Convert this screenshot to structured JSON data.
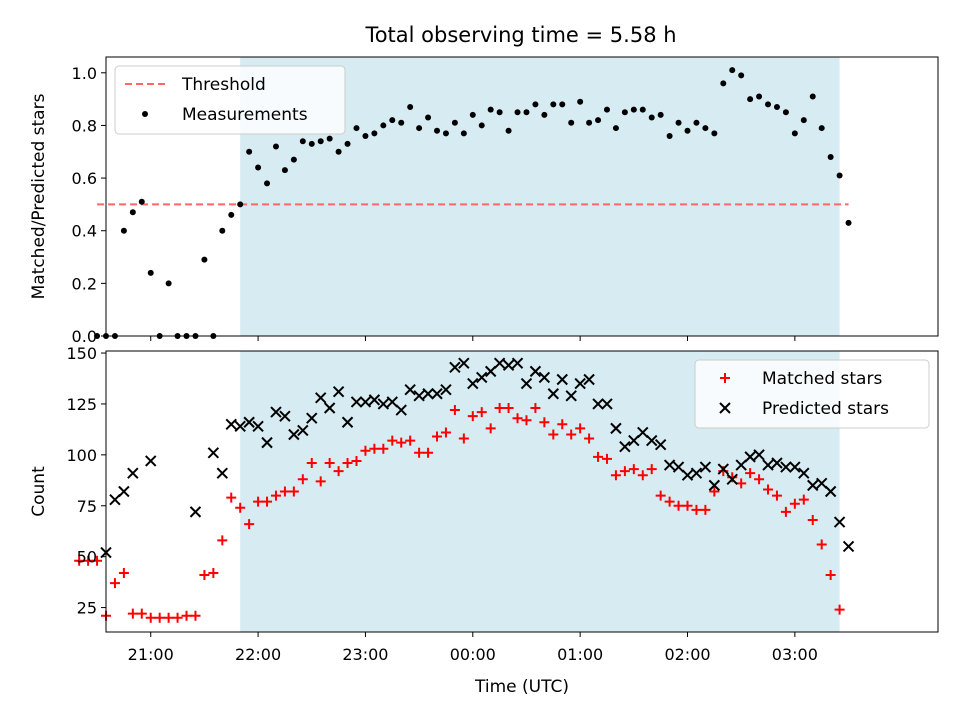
{
  "title": "Total observing time = 5.58 h",
  "colors": {
    "threshold": "#ff6666",
    "measurements": "#000000",
    "matched": "#ff0000",
    "predicted": "#000000",
    "span": "#add8e6"
  },
  "chart_data": [
    {
      "type": "scatter",
      "name": "top",
      "ylabel": "Matched/Predicted stars",
      "xlabel": "",
      "xlim": [
        "20:35",
        "04:20"
      ],
      "ylim": [
        0,
        1.06
      ],
      "yticks": [
        0.0,
        0.2,
        0.4,
        0.6,
        0.8,
        1.0
      ],
      "ytick_labels": [
        "0.0",
        "0.2",
        "0.4",
        "0.6",
        "0.8",
        "1.0"
      ],
      "observing_span": [
        "21:50",
        "03:25"
      ],
      "threshold": {
        "y": 0.5,
        "x_range": [
          "20:30",
          "03:30"
        ]
      },
      "legend": {
        "position": "top-left",
        "entries": [
          "Threshold",
          "Measurements"
        ]
      },
      "series": [
        {
          "name": "Measurements",
          "marker": "dot",
          "points": [
            [
              "20:30",
              0.0
            ],
            [
              "20:35",
              0.0
            ],
            [
              "20:40",
              0.0
            ],
            [
              "20:45",
              0.4
            ],
            [
              "20:50",
              0.47
            ],
            [
              "20:55",
              0.51
            ],
            [
              "21:00",
              0.24
            ],
            [
              "21:05",
              0.0
            ],
            [
              "21:10",
              0.2
            ],
            [
              "21:15",
              0.0
            ],
            [
              "21:20",
              0.0
            ],
            [
              "21:25",
              0.0
            ],
            [
              "21:30",
              0.29
            ],
            [
              "21:35",
              0.0
            ],
            [
              "21:40",
              0.4
            ],
            [
              "21:45",
              0.46
            ],
            [
              "21:50",
              0.5
            ],
            [
              "21:55",
              0.7
            ],
            [
              "22:00",
              0.64
            ],
            [
              "22:05",
              0.58
            ],
            [
              "22:10",
              0.72
            ],
            [
              "22:15",
              0.63
            ],
            [
              "22:20",
              0.67
            ],
            [
              "22:25",
              0.74
            ],
            [
              "22:30",
              0.73
            ],
            [
              "22:35",
              0.74
            ],
            [
              "22:40",
              0.75
            ],
            [
              "22:45",
              0.7
            ],
            [
              "22:50",
              0.73
            ],
            [
              "22:55",
              0.79
            ],
            [
              "23:00",
              0.76
            ],
            [
              "23:05",
              0.77
            ],
            [
              "23:10",
              0.8
            ],
            [
              "23:15",
              0.82
            ],
            [
              "23:20",
              0.81
            ],
            [
              "23:25",
              0.87
            ],
            [
              "23:30",
              0.79
            ],
            [
              "23:35",
              0.83
            ],
            [
              "23:40",
              0.78
            ],
            [
              "23:45",
              0.77
            ],
            [
              "23:50",
              0.81
            ],
            [
              "23:55",
              0.77
            ],
            [
              "00:00",
              0.84
            ],
            [
              "00:05",
              0.8
            ],
            [
              "00:10",
              0.86
            ],
            [
              "00:15",
              0.85
            ],
            [
              "00:20",
              0.78
            ],
            [
              "00:25",
              0.85
            ],
            [
              "00:30",
              0.85
            ],
            [
              "00:35",
              0.88
            ],
            [
              "00:40",
              0.84
            ],
            [
              "00:45",
              0.88
            ],
            [
              "00:50",
              0.88
            ],
            [
              "00:55",
              0.81
            ],
            [
              "01:00",
              0.89
            ],
            [
              "01:05",
              0.81
            ],
            [
              "01:10",
              0.82
            ],
            [
              "01:15",
              0.86
            ],
            [
              "01:20",
              0.79
            ],
            [
              "01:25",
              0.85
            ],
            [
              "01:30",
              0.86
            ],
            [
              "01:35",
              0.86
            ],
            [
              "01:40",
              0.83
            ],
            [
              "01:45",
              0.84
            ],
            [
              "01:50",
              0.76
            ],
            [
              "01:55",
              0.81
            ],
            [
              "02:00",
              0.78
            ],
            [
              "02:05",
              0.81
            ],
            [
              "02:10",
              0.79
            ],
            [
              "02:15",
              0.77
            ],
            [
              "02:20",
              0.96
            ],
            [
              "02:25",
              1.01
            ],
            [
              "02:30",
              0.99
            ],
            [
              "02:35",
              0.9
            ],
            [
              "02:40",
              0.91
            ],
            [
              "02:45",
              0.88
            ],
            [
              "02:50",
              0.87
            ],
            [
              "02:55",
              0.85
            ],
            [
              "03:00",
              0.77
            ],
            [
              "03:05",
              0.82
            ],
            [
              "03:10",
              0.91
            ],
            [
              "03:15",
              0.79
            ],
            [
              "03:20",
              0.68
            ],
            [
              "03:25",
              0.61
            ],
            [
              "03:30",
              0.43
            ]
          ]
        }
      ]
    },
    {
      "type": "scatter",
      "name": "bottom",
      "ylabel": "Count",
      "xlabel": "Time (UTC)",
      "xlim": [
        "20:35",
        "04:20"
      ],
      "ylim": [
        13,
        151
      ],
      "yticks": [
        25,
        50,
        75,
        100,
        125,
        150
      ],
      "ytick_labels": [
        "25",
        "50",
        "75",
        "100",
        "125",
        "150"
      ],
      "xticks": [
        "21:00",
        "22:00",
        "23:00",
        "00:00",
        "01:00",
        "02:00",
        "03:00"
      ],
      "observing_span": [
        "21:50",
        "03:25"
      ],
      "legend": {
        "position": "top-right",
        "entries": [
          "Matched stars",
          "Predicted stars"
        ]
      },
      "series": [
        {
          "name": "Matched stars",
          "marker": "plus",
          "points": [
            [
              "20:20",
              48
            ],
            [
              "20:25",
              48
            ],
            [
              "20:30",
              48
            ],
            [
              "20:35",
              21
            ],
            [
              "20:40",
              37
            ],
            [
              "20:45",
              42
            ],
            [
              "20:50",
              22
            ],
            [
              "20:55",
              22
            ],
            [
              "21:00",
              20
            ],
            [
              "21:05",
              20
            ],
            [
              "21:10",
              20
            ],
            [
              "21:15",
              20
            ],
            [
              "21:20",
              21
            ],
            [
              "21:25",
              21
            ],
            [
              "21:30",
              41
            ],
            [
              "21:35",
              42
            ],
            [
              "21:40",
              58
            ],
            [
              "21:45",
              79
            ],
            [
              "21:50",
              74
            ],
            [
              "21:55",
              66
            ],
            [
              "22:00",
              77
            ],
            [
              "22:05",
              77
            ],
            [
              "22:10",
              80
            ],
            [
              "22:15",
              82
            ],
            [
              "22:20",
              82
            ],
            [
              "22:25",
              88
            ],
            [
              "22:30",
              96
            ],
            [
              "22:35",
              87
            ],
            [
              "22:40",
              96
            ],
            [
              "22:45",
              92
            ],
            [
              "22:50",
              96
            ],
            [
              "22:55",
              97
            ],
            [
              "23:00",
              102
            ],
            [
              "23:05",
              103
            ],
            [
              "23:10",
              103
            ],
            [
              "23:15",
              107
            ],
            [
              "23:20",
              106
            ],
            [
              "23:25",
              107
            ],
            [
              "23:30",
              101
            ],
            [
              "23:35",
              101
            ],
            [
              "23:40",
              109
            ],
            [
              "23:45",
              111
            ],
            [
              "23:50",
              122
            ],
            [
              "23:55",
              108
            ],
            [
              "00:00",
              119
            ],
            [
              "00:05",
              121
            ],
            [
              "00:10",
              113
            ],
            [
              "00:15",
              123
            ],
            [
              "00:20",
              123
            ],
            [
              "00:25",
              118
            ],
            [
              "00:30",
              117
            ],
            [
              "00:35",
              123
            ],
            [
              "00:40",
              116
            ],
            [
              "00:45",
              110
            ],
            [
              "00:50",
              115
            ],
            [
              "00:55",
              110
            ],
            [
              "01:00",
              113
            ],
            [
              "01:05",
              108
            ],
            [
              "01:10",
              99
            ],
            [
              "01:15",
              98
            ],
            [
              "01:20",
              90
            ],
            [
              "01:25",
              92
            ],
            [
              "01:30",
              93
            ],
            [
              "01:35",
              90
            ],
            [
              "01:40",
              93
            ],
            [
              "01:45",
              80
            ],
            [
              "01:50",
              77
            ],
            [
              "01:55",
              75
            ],
            [
              "02:00",
              75
            ],
            [
              "02:05",
              73
            ],
            [
              "02:10",
              73
            ],
            [
              "02:15",
              82
            ],
            [
              "02:20",
              92
            ],
            [
              "02:25",
              89
            ],
            [
              "02:30",
              86
            ],
            [
              "02:35",
              91
            ],
            [
              "02:40",
              88
            ],
            [
              "02:45",
              83
            ],
            [
              "02:50",
              80
            ],
            [
              "02:55",
              72
            ],
            [
              "03:00",
              76
            ],
            [
              "03:05",
              78
            ],
            [
              "03:10",
              68
            ],
            [
              "03:15",
              56
            ],
            [
              "03:20",
              41
            ],
            [
              "03:25",
              24
            ]
          ]
        },
        {
          "name": "Predicted stars",
          "marker": "x",
          "points": [
            [
              "20:35",
              52
            ],
            [
              "20:40",
              78
            ],
            [
              "20:45",
              82
            ],
            [
              "20:50",
              91
            ],
            [
              "21:00",
              97
            ],
            [
              "21:25",
              72
            ],
            [
              "21:35",
              101
            ],
            [
              "21:40",
              91
            ],
            [
              "21:45",
              115
            ],
            [
              "21:50",
              114
            ],
            [
              "21:55",
              116
            ],
            [
              "22:00",
              114
            ],
            [
              "22:05",
              106
            ],
            [
              "22:10",
              121
            ],
            [
              "22:15",
              119
            ],
            [
              "22:20",
              110
            ],
            [
              "22:25",
              112
            ],
            [
              "22:30",
              118
            ],
            [
              "22:35",
              128
            ],
            [
              "22:40",
              123
            ],
            [
              "22:45",
              131
            ],
            [
              "22:50",
              116
            ],
            [
              "22:55",
              126
            ],
            [
              "23:00",
              126
            ],
            [
              "23:05",
              127
            ],
            [
              "23:10",
              125
            ],
            [
              "23:15",
              126
            ],
            [
              "23:20",
              122
            ],
            [
              "23:25",
              132
            ],
            [
              "23:30",
              129
            ],
            [
              "23:35",
              130
            ],
            [
              "23:40",
              130
            ],
            [
              "23:45",
              132
            ],
            [
              "23:50",
              143
            ],
            [
              "23:55",
              145
            ],
            [
              "00:00",
              135
            ],
            [
              "00:05",
              138
            ],
            [
              "00:10",
              141
            ],
            [
              "00:15",
              145
            ],
            [
              "00:20",
              144
            ],
            [
              "00:25",
              145
            ],
            [
              "00:30",
              135
            ],
            [
              "00:35",
              141
            ],
            [
              "00:40",
              138
            ],
            [
              "00:45",
              130
            ],
            [
              "00:50",
              137
            ],
            [
              "00:55",
              129
            ],
            [
              "01:00",
              135
            ],
            [
              "01:05",
              137
            ],
            [
              "01:10",
              125
            ],
            [
              "01:15",
              125
            ],
            [
              "01:20",
              113
            ],
            [
              "01:25",
              104
            ],
            [
              "01:30",
              107
            ],
            [
              "01:35",
              111
            ],
            [
              "01:40",
              107
            ],
            [
              "01:45",
              105
            ],
            [
              "01:50",
              95
            ],
            [
              "01:55",
              94
            ],
            [
              "02:00",
              90
            ],
            [
              "02:05",
              91
            ],
            [
              "02:10",
              94
            ],
            [
              "02:15",
              85
            ],
            [
              "02:20",
              93
            ],
            [
              "02:25",
              88
            ],
            [
              "02:30",
              95
            ],
            [
              "02:35",
              99
            ],
            [
              "02:40",
              100
            ],
            [
              "02:45",
              95
            ],
            [
              "02:50",
              96
            ],
            [
              "02:55",
              94
            ],
            [
              "03:00",
              94
            ],
            [
              "03:05",
              91
            ],
            [
              "03:10",
              85
            ],
            [
              "03:15",
              86
            ],
            [
              "03:20",
              82
            ],
            [
              "03:25",
              67
            ],
            [
              "03:30",
              55
            ]
          ]
        }
      ]
    }
  ]
}
